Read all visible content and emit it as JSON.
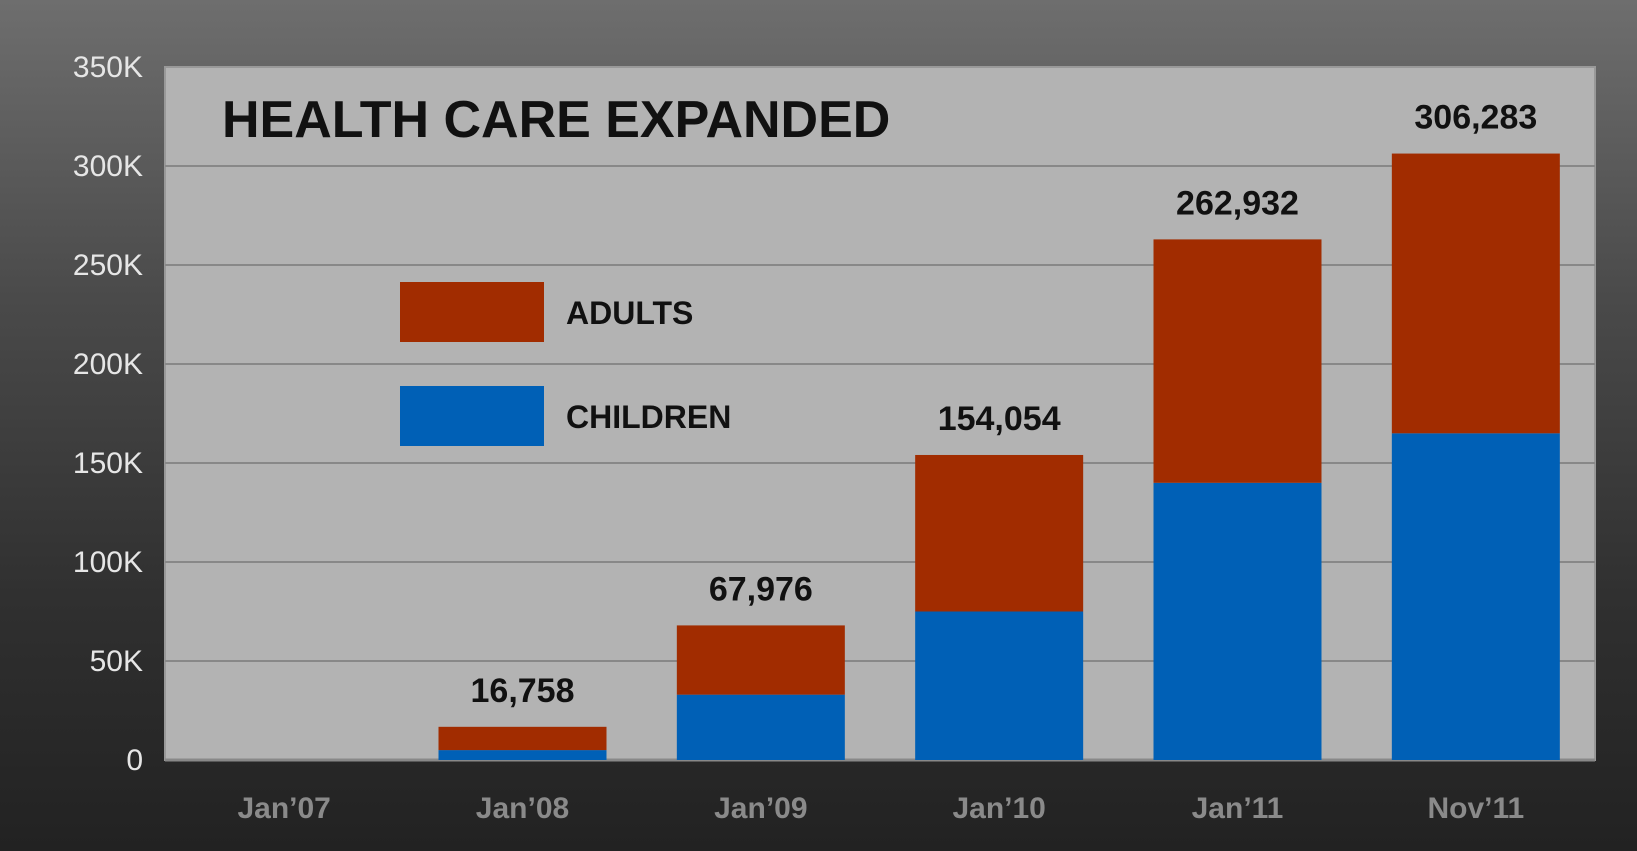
{
  "chart_data": {
    "type": "bar",
    "stacked": true,
    "title": "HEALTH CARE EXPANDED",
    "categories": [
      "Jan’07",
      "Jan’08",
      "Jan’09",
      "Jan’10",
      "Jan’11",
      "Nov’11"
    ],
    "series": [
      {
        "name": "CHILDREN",
        "color": "#0060b6",
        "values": [
          0,
          5000,
          33000,
          75000,
          140000,
          165000
        ]
      },
      {
        "name": "ADULTS",
        "color": "#a12c00",
        "values": [
          0,
          11758,
          34976,
          79054,
          122932,
          141283
        ]
      }
    ],
    "totals": [
      null,
      16758,
      67976,
      154054,
      262932,
      306283
    ],
    "total_labels": [
      "",
      "16,758",
      "67,976",
      "154,054",
      "262,932",
      "306,283"
    ],
    "ylim": [
      0,
      350000
    ],
    "yticks": [
      0,
      50000,
      100000,
      150000,
      200000,
      250000,
      300000,
      350000
    ],
    "ytick_labels": [
      "0",
      "50K",
      "100K",
      "150K",
      "200K",
      "250K",
      "300K",
      "350K"
    ],
    "legend_order": [
      "ADULTS",
      "CHILDREN"
    ],
    "legend_placement": "upper-left inside plot",
    "grid": true,
    "plot_background": "#b3b3b3",
    "grid_color": "#888888"
  }
}
